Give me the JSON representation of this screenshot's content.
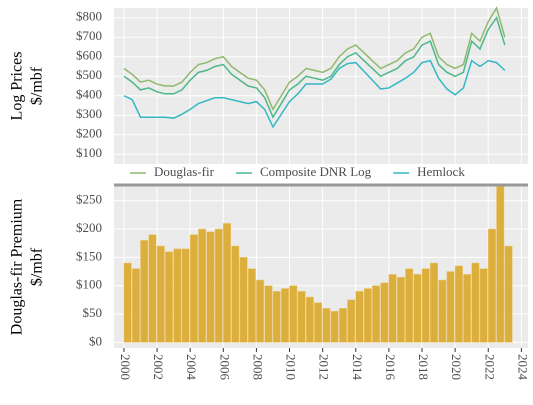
{
  "chart_data": [
    {
      "type": "line",
      "ylabel": [
        "Log Prices",
        "$/mbf"
      ],
      "x": [
        2000,
        2000.5,
        2001,
        2001.5,
        2002,
        2002.5,
        2003,
        2003.5,
        2004,
        2004.5,
        2005,
        2005.5,
        2006,
        2006.5,
        2007,
        2007.5,
        2008,
        2008.5,
        2009,
        2009.5,
        2010,
        2010.5,
        2011,
        2011.5,
        2012,
        2012.5,
        2013,
        2013.5,
        2014,
        2014.5,
        2015,
        2015.5,
        2016,
        2016.5,
        2017,
        2017.5,
        2018,
        2018.5,
        2019,
        2019.5,
        2020,
        2020.5,
        2021,
        2021.5,
        2022,
        2022.5,
        2023
      ],
      "series": [
        {
          "name": "Douglas-fir",
          "color": "#8fb96b",
          "values": [
            540,
            510,
            470,
            480,
            460,
            450,
            450,
            470,
            520,
            560,
            570,
            590,
            600,
            550,
            520,
            490,
            480,
            430,
            330,
            400,
            470,
            500,
            540,
            530,
            520,
            540,
            600,
            640,
            660,
            620,
            580,
            540,
            560,
            580,
            620,
            640,
            700,
            720,
            600,
            560,
            540,
            560,
            720,
            680,
            780,
            850,
            700
          ]
        },
        {
          "name": "Composite DNR Log",
          "color": "#4cb88a",
          "values": [
            500,
            470,
            430,
            440,
            420,
            410,
            410,
            430,
            480,
            520,
            530,
            550,
            560,
            510,
            480,
            450,
            440,
            390,
            290,
            360,
            430,
            460,
            500,
            490,
            480,
            500,
            560,
            600,
            620,
            580,
            540,
            500,
            520,
            540,
            580,
            600,
            660,
            680,
            560,
            520,
            500,
            520,
            680,
            640,
            740,
            800,
            660
          ]
        },
        {
          "name": "Hemlock",
          "color": "#35b8c4",
          "values": [
            400,
            380,
            290,
            290,
            290,
            290,
            285,
            305,
            330,
            360,
            375,
            390,
            390,
            380,
            370,
            360,
            370,
            330,
            240,
            305,
            370,
            410,
            460,
            460,
            460,
            485,
            540,
            565,
            570,
            525,
            480,
            435,
            440,
            465,
            490,
            520,
            570,
            580,
            490,
            435,
            405,
            440,
            580,
            550,
            580,
            570,
            530
          ]
        }
      ],
      "xlim": [
        1999.4,
        2024.4
      ],
      "ylim": [
        50,
        850
      ],
      "yticks": [
        {
          "value": 100,
          "label": "$100"
        },
        {
          "value": 200,
          "label": "$200"
        },
        {
          "value": 300,
          "label": "$300"
        },
        {
          "value": 400,
          "label": "$400"
        },
        {
          "value": 500,
          "label": "$500"
        },
        {
          "value": 600,
          "label": "$600"
        },
        {
          "value": 700,
          "label": "$700"
        },
        {
          "value": 800,
          "label": "$800"
        }
      ],
      "grid": true
    },
    {
      "type": "bar",
      "ylabel": [
        "Douglas-fir Premium",
        "$/mbf"
      ],
      "color": "#dcae3c",
      "x": [
        2000,
        2000.5,
        2001,
        2001.5,
        2002,
        2002.5,
        2003,
        2003.5,
        2004,
        2004.5,
        2005,
        2005.5,
        2006,
        2006.5,
        2007,
        2007.5,
        2008,
        2008.5,
        2009,
        2009.5,
        2010,
        2010.5,
        2011,
        2011.5,
        2012,
        2012.5,
        2013,
        2013.5,
        2014,
        2014.5,
        2015,
        2015.5,
        2016,
        2016.5,
        2017,
        2017.5,
        2018,
        2018.5,
        2019,
        2019.5,
        2020,
        2020.5,
        2021,
        2021.5,
        2022,
        2022.5,
        2023
      ],
      "values": [
        140,
        130,
        180,
        190,
        170,
        160,
        165,
        165,
        190,
        200,
        195,
        200,
        210,
        170,
        150,
        130,
        110,
        100,
        90,
        95,
        100,
        90,
        80,
        70,
        60,
        55,
        60,
        75,
        90,
        95,
        100,
        105,
        120,
        115,
        130,
        120,
        130,
        140,
        110,
        125,
        135,
        120,
        140,
        130,
        200,
        280,
        170
      ],
      "xlim": [
        1999.4,
        2024.4
      ],
      "xticks": [
        2000,
        2002,
        2004,
        2006,
        2008,
        2010,
        2012,
        2014,
        2016,
        2018,
        2020,
        2022,
        2024
      ],
      "ylim": [
        -10,
        276
      ],
      "yticks": [
        {
          "value": 0,
          "label": "$0"
        },
        {
          "value": 50,
          "label": "$50"
        },
        {
          "value": 100,
          "label": "$100"
        },
        {
          "value": 150,
          "label": "$150"
        },
        {
          "value": 200,
          "label": "$200"
        },
        {
          "value": 250,
          "label": "$250"
        }
      ],
      "grid": true
    }
  ]
}
